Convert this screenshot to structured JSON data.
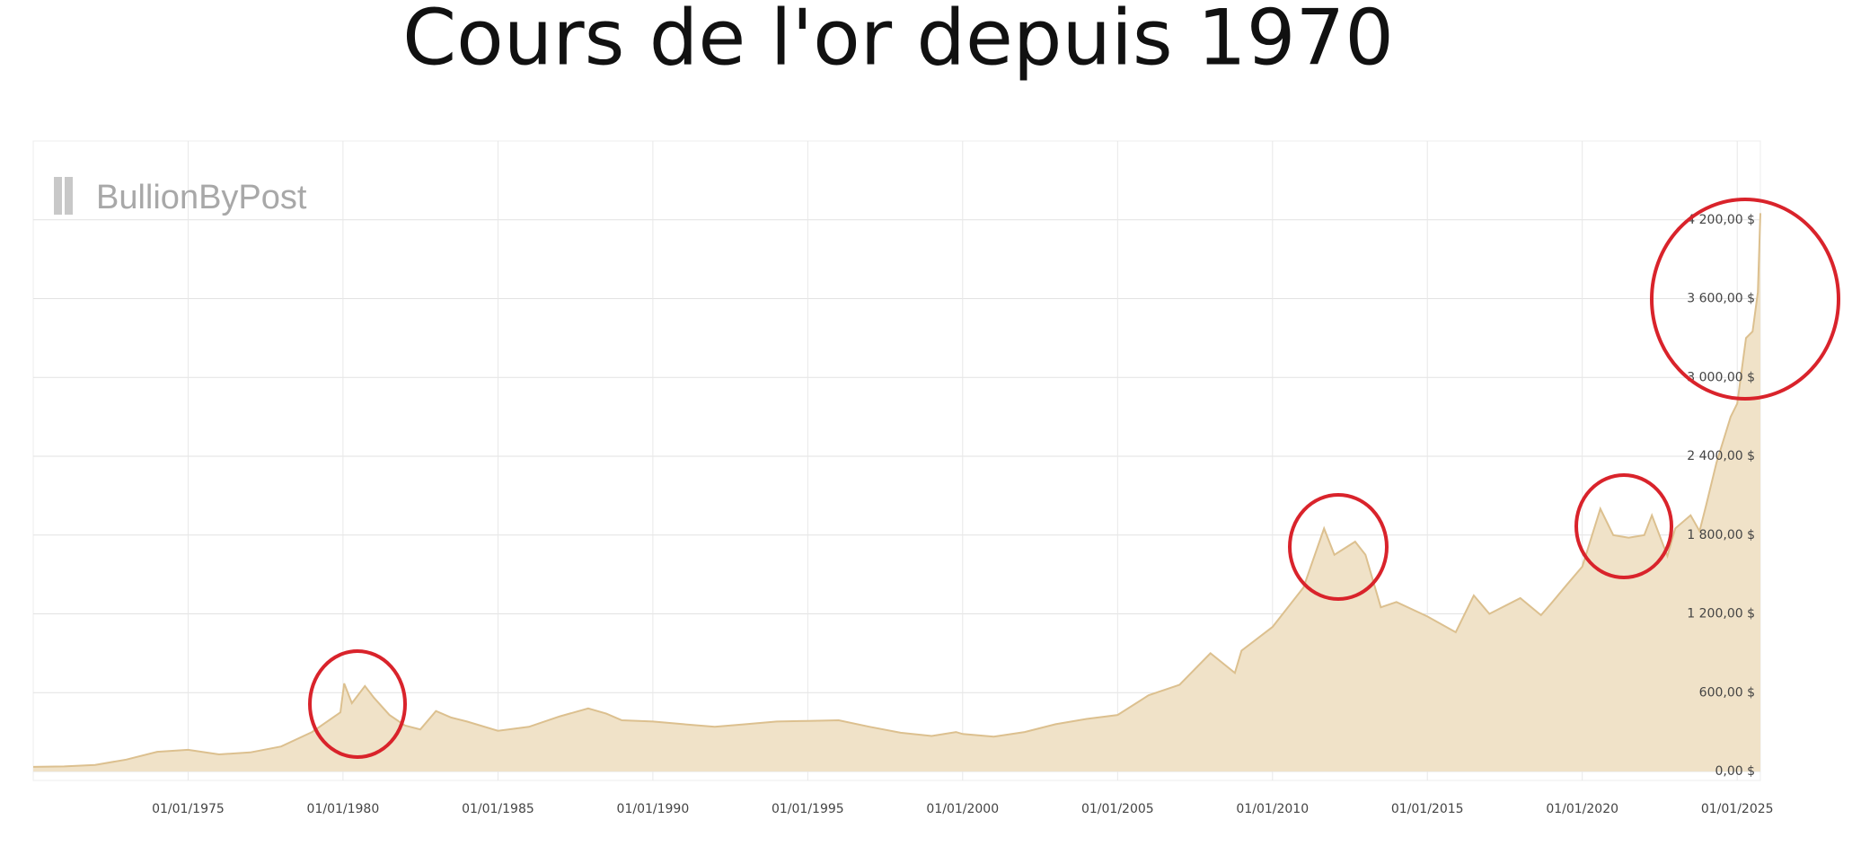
{
  "chart_data": {
    "type": "area",
    "title": "Cours de l'or depuis 1970",
    "watermark": "BullionByPost",
    "x": [
      "1970-01-01",
      "1971-01-01",
      "1972-01-01",
      "1973-01-01",
      "1974-01-01",
      "1975-01-01",
      "1976-01-01",
      "1977-01-01",
      "1978-01-01",
      "1979-01-01",
      "1979-12-01",
      "1980-01-15",
      "1980-04-15",
      "1980-09-15",
      "1981-01-01",
      "1981-07-01",
      "1982-01-01",
      "1982-07-01",
      "1983-01-01",
      "1983-07-01",
      "1984-01-01",
      "1985-01-01",
      "1986-01-01",
      "1987-01-01",
      "1987-12-01",
      "1988-07-01",
      "1989-01-01",
      "1990-01-01",
      "1991-01-01",
      "1992-01-01",
      "1993-01-01",
      "1994-01-01",
      "1995-01-01",
      "1996-01-01",
      "1997-01-01",
      "1998-01-01",
      "1999-01-01",
      "1999-10-15",
      "2000-01-01",
      "2001-01-01",
      "2002-01-01",
      "2003-01-01",
      "2004-01-01",
      "2005-01-01",
      "2006-01-01",
      "2007-01-01",
      "2008-01-01",
      "2008-10-15",
      "2009-01-01",
      "2010-01-01",
      "2011-01-01",
      "2011-09-01",
      "2012-01-01",
      "2012-09-01",
      "2013-01-01",
      "2013-07-01",
      "2014-01-01",
      "2015-01-01",
      "2015-12-01",
      "2016-07-01",
      "2017-01-01",
      "2018-01-01",
      "2018-09-01",
      "2019-01-01",
      "2019-07-01",
      "2020-01-01",
      "2020-08-01",
      "2021-01-01",
      "2021-07-01",
      "2022-01-01",
      "2022-04-01",
      "2022-10-01",
      "2023-01-01",
      "2023-07-01",
      "2023-10-15",
      "2024-01-01",
      "2024-05-01",
      "2024-10-15",
      "2025-01-01",
      "2025-04-15",
      "2025-07-01",
      "2025-09-01",
      "2025-10-01"
    ],
    "values": [
      35,
      38,
      50,
      90,
      150,
      165,
      130,
      145,
      190,
      300,
      450,
      670,
      520,
      650,
      560,
      430,
      350,
      320,
      460,
      410,
      380,
      310,
      340,
      420,
      480,
      440,
      390,
      380,
      360,
      340,
      360,
      380,
      385,
      390,
      340,
      295,
      270,
      300,
      285,
      265,
      300,
      360,
      400,
      430,
      580,
      660,
      900,
      750,
      920,
      1100,
      1400,
      1850,
      1650,
      1750,
      1650,
      1250,
      1290,
      1180,
      1060,
      1340,
      1200,
      1320,
      1190,
      1280,
      1420,
      1560,
      2000,
      1800,
      1780,
      1800,
      1950,
      1640,
      1850,
      1950,
      1830,
      2030,
      2350,
      2700,
      2800,
      3300,
      3350,
      3650,
      4250
    ],
    "color": "#dcc08f",
    "fill": "#f0e2c8",
    "xlim": [
      "1970-01-01",
      "2025-10-01"
    ],
    "ylim": [
      0,
      4800
    ],
    "xticks": [
      {
        "value": "1975-01-01",
        "label": "01/01/1975"
      },
      {
        "value": "1980-01-01",
        "label": "01/01/1980"
      },
      {
        "value": "1985-01-01",
        "label": "01/01/1985"
      },
      {
        "value": "1990-01-01",
        "label": "01/01/1990"
      },
      {
        "value": "1995-01-01",
        "label": "01/01/1995"
      },
      {
        "value": "2000-01-01",
        "label": "01/01/2000"
      },
      {
        "value": "2005-01-01",
        "label": "01/01/2005"
      },
      {
        "value": "2010-01-01",
        "label": "01/01/2010"
      },
      {
        "value": "2015-01-01",
        "label": "01/01/2015"
      },
      {
        "value": "2020-01-01",
        "label": "01/01/2020"
      },
      {
        "value": "2025-01-01",
        "label": "01/01/2025"
      }
    ],
    "yticks": [
      {
        "value": 0,
        "label": "0,00 $"
      },
      {
        "value": 600,
        "label": "600,00 $"
      },
      {
        "value": 1200,
        "label": "1 200,00 $"
      },
      {
        "value": 1800,
        "label": "1 800,00 $"
      },
      {
        "value": 2400,
        "label": "2 400,00 $"
      },
      {
        "value": 3000,
        "label": "3 000,00 $"
      },
      {
        "value": 3600,
        "label": "3 600,00 $"
      },
      {
        "value": 4200,
        "label": "4 200,00 $"
      }
    ],
    "grid": true
  }
}
